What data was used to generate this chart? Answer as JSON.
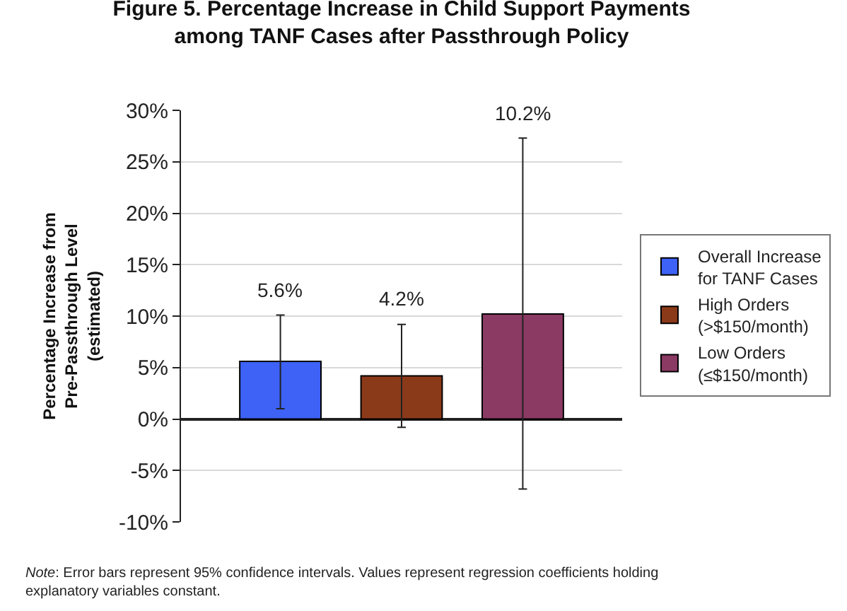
{
  "chart_data": {
    "type": "bar",
    "title": "Figure 5. Percentage Increase in Child Support Payments\namong TANF Cases after Passthrough Policy",
    "ylabel": "Percentage Increase from\nPre-Passthrough Level\n(estimated)",
    "categories": [
      null,
      null,
      null
    ],
    "series": [
      {
        "name": "Overall Increase\nfor TANF Cases",
        "color": "#3d62f5",
        "values": [
          5.6,
          null,
          null
        ],
        "errors": [
          [
            1.0,
            10.1
          ],
          null,
          null
        ]
      },
      {
        "name": "High Orders\n(>$150/month)",
        "color": "#8b3a19",
        "values": [
          null,
          4.2,
          null
        ],
        "errors": [
          null,
          [
            -0.8,
            9.2
          ],
          null
        ]
      },
      {
        "name": "Low Orders\n(≤$150/month)",
        "color": "#8b3a64",
        "values": [
          null,
          null,
          10.2
        ],
        "errors": [
          null,
          null,
          [
            -6.8,
            27.3
          ]
        ]
      }
    ],
    "value_labels": [
      "5.6%",
      "4.2%",
      "10.2%"
    ],
    "ylim": [
      -10,
      30
    ],
    "yticks": [
      {
        "value": -10,
        "label": "-10%"
      },
      {
        "value": -5,
        "label": "-5%"
      },
      {
        "value": 0,
        "label": "0%"
      },
      {
        "value": 5,
        "label": "5%"
      },
      {
        "value": 10,
        "label": "10%"
      },
      {
        "value": 15,
        "label": "15%"
      },
      {
        "value": 20,
        "label": "20%"
      },
      {
        "value": 25,
        "label": "25%"
      },
      {
        "value": 30,
        "label": "30%"
      }
    ],
    "grid": "y",
    "legend": "right",
    "annotations": [
      "Note: Error bars represent 95% confidence intervals. Values represent regression coefficients holding\nexplanatory variables constant."
    ]
  }
}
